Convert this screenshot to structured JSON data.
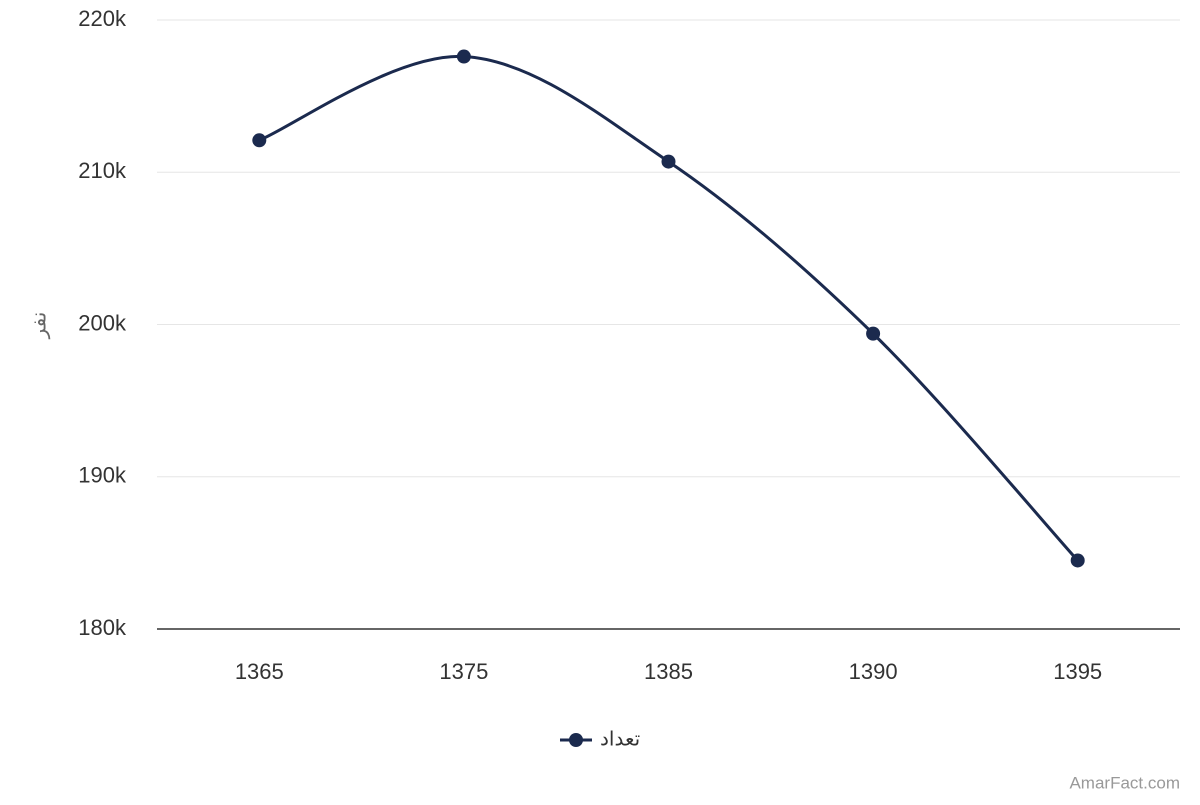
{
  "chart_data": {
    "type": "line",
    "y_axis_label": "نفر",
    "categories": [
      "1365",
      "1375",
      "1385",
      "1390",
      "1395"
    ],
    "series": [
      {
        "name": "تعداد",
        "color": "#1b2a4e",
        "values": [
          212100,
          217600,
          210700,
          199400,
          184500
        ]
      }
    ],
    "ylim": [
      180000,
      220000
    ],
    "yticks": [
      {
        "value": 180000,
        "label": "180k"
      },
      {
        "value": 190000,
        "label": "190k"
      },
      {
        "value": 200000,
        "label": "200k"
      },
      {
        "value": 210000,
        "label": "210k"
      },
      {
        "value": 220000,
        "label": "220k"
      }
    ],
    "grid": true,
    "smooth": true,
    "legend": "bottom",
    "credit": "AmarFact.com"
  }
}
